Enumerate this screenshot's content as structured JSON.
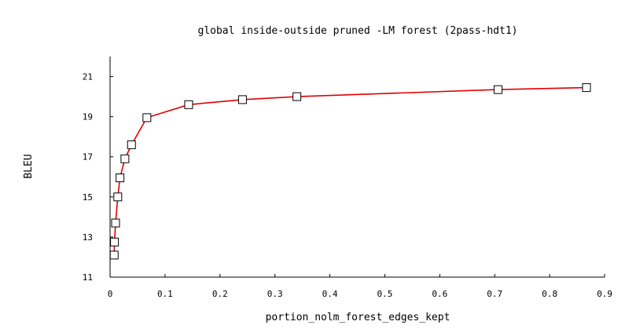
{
  "chart_data": {
    "type": "line",
    "title": "global inside-outside pruned -LM forest (2pass-hdt1)",
    "xlabel": "portion_nolm_forest_edges_kept",
    "ylabel": "BLEU",
    "xlim": [
      0,
      0.9
    ],
    "ylim": [
      11,
      22
    ],
    "xticks": [
      0,
      0.1,
      0.2,
      0.3,
      0.4,
      0.5,
      0.6,
      0.7,
      0.8,
      0.9
    ],
    "xtick_labels": [
      "0",
      "0.1",
      "0.2",
      "0.3",
      "0.4",
      "0.5",
      "0.6",
      "0.7",
      "0.8",
      "0.9"
    ],
    "yticks": [
      11,
      13,
      15,
      17,
      19,
      21
    ],
    "ytick_labels": [
      "11",
      "13",
      "15",
      "17",
      "19",
      "21"
    ],
    "grid": false,
    "legend": "none",
    "series": [
      {
        "color": "#e00000",
        "marker": "square",
        "x": [
          0.0075,
          0.008,
          0.01,
          0.014,
          0.018,
          0.027,
          0.039,
          0.067,
          0.143,
          0.241,
          0.34,
          0.706,
          0.867
        ],
        "y": [
          12.1,
          12.75,
          13.7,
          15.0,
          15.95,
          16.9,
          17.6,
          18.95,
          19.6,
          19.85,
          20.0,
          20.35,
          20.45
        ]
      }
    ]
  }
}
